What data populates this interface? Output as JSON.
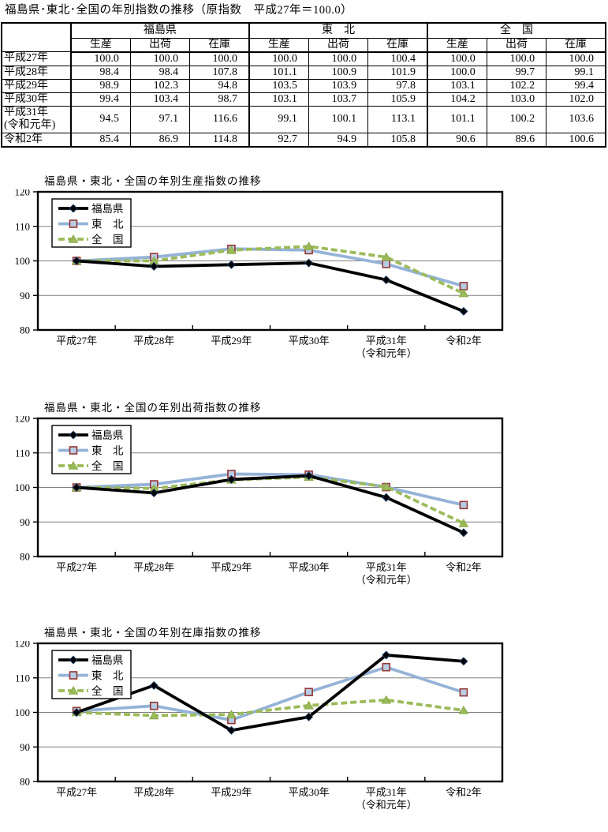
{
  "page_title": "福島県･東北･全国の年別指数の推移（原指数　平成27年＝100.0）",
  "table": {
    "corner_label": "",
    "group_headers": [
      "福島県",
      "東　北",
      "全　国"
    ],
    "sub_headers": [
      "生産",
      "出荷",
      "在庫"
    ],
    "rows": [
      {
        "year": "平成27年",
        "values": [
          "100.0",
          "100.0",
          "100.0",
          "100.0",
          "100.0",
          "100.4",
          "100.0",
          "100.0",
          "100.0"
        ]
      },
      {
        "year": "平成28年",
        "values": [
          "98.4",
          "98.4",
          "107.8",
          "101.1",
          "100.9",
          "101.9",
          "100.0",
          "99.7",
          "99.1"
        ]
      },
      {
        "year": "平成29年",
        "values": [
          "98.9",
          "102.3",
          "94.8",
          "103.5",
          "103.9",
          "97.8",
          "103.1",
          "102.2",
          "99.4"
        ]
      },
      {
        "year": "平成30年",
        "values": [
          "99.4",
          "103.4",
          "98.7",
          "103.1",
          "103.7",
          "105.9",
          "104.2",
          "103.0",
          "102.0"
        ]
      },
      {
        "year": "平成31年\n(令和元年)",
        "values": [
          "94.5",
          "97.1",
          "116.6",
          "99.1",
          "100.1",
          "113.1",
          "101.1",
          "100.2",
          "103.6"
        ]
      },
      {
        "year": "令和2年",
        "values": [
          "85.4",
          "86.9",
          "114.8",
          "92.7",
          "94.9",
          "105.8",
          "90.6",
          "89.6",
          "100.6"
        ]
      }
    ]
  },
  "chart_data": [
    {
      "type": "line",
      "title": "福島県・東北・全国の年別生産指数の推移",
      "categories": [
        "平成27年",
        "平成28年",
        "平成29年",
        "平成30年",
        "平成31年\n（令和元年）",
        "令和2年"
      ],
      "ylim": [
        80,
        120
      ],
      "yticks": [
        80,
        90,
        100,
        110,
        120
      ],
      "grid": true,
      "legend_position": "top-left",
      "series": [
        {
          "key": "fukushima",
          "name": "福島県",
          "color": "#000000",
          "line": "solid",
          "marker": "diamond",
          "marker_fill": "#000000",
          "marker_stroke": "#17375E",
          "values": [
            100.0,
            98.4,
            98.9,
            99.4,
            94.5,
            85.4
          ]
        },
        {
          "key": "tohoku",
          "name": "東　北",
          "color": "#95B3D7",
          "line": "solid",
          "marker": "square",
          "marker_fill": "#B8CCE4",
          "marker_stroke": "#953735",
          "values": [
            100.0,
            101.1,
            103.5,
            103.1,
            99.1,
            92.7
          ]
        },
        {
          "key": "zenkoku",
          "name": "全　国",
          "color": "#9BBB59",
          "line": "dashed",
          "marker": "triangle",
          "marker_fill": "#9BBB59",
          "marker_stroke": "#89A94B",
          "values": [
            100.0,
            100.0,
            103.1,
            104.2,
            101.1,
            90.6
          ]
        }
      ]
    },
    {
      "type": "line",
      "title": "福島県・東北・全国の年別出荷指数の推移",
      "categories": [
        "平成27年",
        "平成28年",
        "平成29年",
        "平成30年",
        "平成31年\n（令和元年）",
        "令和2年"
      ],
      "ylim": [
        80,
        120
      ],
      "yticks": [
        80,
        90,
        100,
        110,
        120
      ],
      "grid": true,
      "legend_position": "top-left",
      "series": [
        {
          "key": "fukushima",
          "name": "福島県",
          "color": "#000000",
          "line": "solid",
          "marker": "diamond",
          "marker_fill": "#000000",
          "marker_stroke": "#17375E",
          "values": [
            100.0,
            98.4,
            102.3,
            103.4,
            97.1,
            86.9
          ]
        },
        {
          "key": "tohoku",
          "name": "東　北",
          "color": "#95B3D7",
          "line": "solid",
          "marker": "square",
          "marker_fill": "#B8CCE4",
          "marker_stroke": "#953735",
          "values": [
            100.0,
            100.9,
            103.9,
            103.7,
            100.1,
            94.9
          ]
        },
        {
          "key": "zenkoku",
          "name": "全　国",
          "color": "#9BBB59",
          "line": "dashed",
          "marker": "triangle",
          "marker_fill": "#9BBB59",
          "marker_stroke": "#89A94B",
          "values": [
            100.0,
            99.7,
            102.2,
            103.0,
            100.2,
            89.6
          ]
        }
      ]
    },
    {
      "type": "line",
      "title": "福島県・東北・全国の年別在庫指数の推移",
      "categories": [
        "平成27年",
        "平成28年",
        "平成29年",
        "平成30年",
        "平成31年\n（令和元年）",
        "令和2年"
      ],
      "ylim": [
        80,
        120
      ],
      "yticks": [
        80,
        90,
        100,
        110,
        120
      ],
      "grid": true,
      "legend_position": "top-left",
      "series": [
        {
          "key": "fukushima",
          "name": "福島県",
          "color": "#000000",
          "line": "solid",
          "marker": "diamond",
          "marker_fill": "#000000",
          "marker_stroke": "#17375E",
          "values": [
            100.0,
            107.8,
            94.8,
            98.7,
            116.6,
            114.8
          ]
        },
        {
          "key": "tohoku",
          "name": "東　北",
          "color": "#95B3D7",
          "line": "solid",
          "marker": "square",
          "marker_fill": "#B8CCE4",
          "marker_stroke": "#953735",
          "values": [
            100.4,
            101.9,
            97.8,
            105.9,
            113.1,
            105.8
          ]
        },
        {
          "key": "zenkoku",
          "name": "全　国",
          "color": "#9BBB59",
          "line": "dashed",
          "marker": "triangle",
          "marker_fill": "#9BBB59",
          "marker_stroke": "#89A94B",
          "values": [
            100.0,
            99.1,
            99.4,
            102.0,
            103.6,
            100.6
          ]
        }
      ]
    }
  ],
  "chart_style": {
    "plot_border_color": "#000000",
    "gridline_color": "#808080",
    "background": "#FFFFFF"
  }
}
